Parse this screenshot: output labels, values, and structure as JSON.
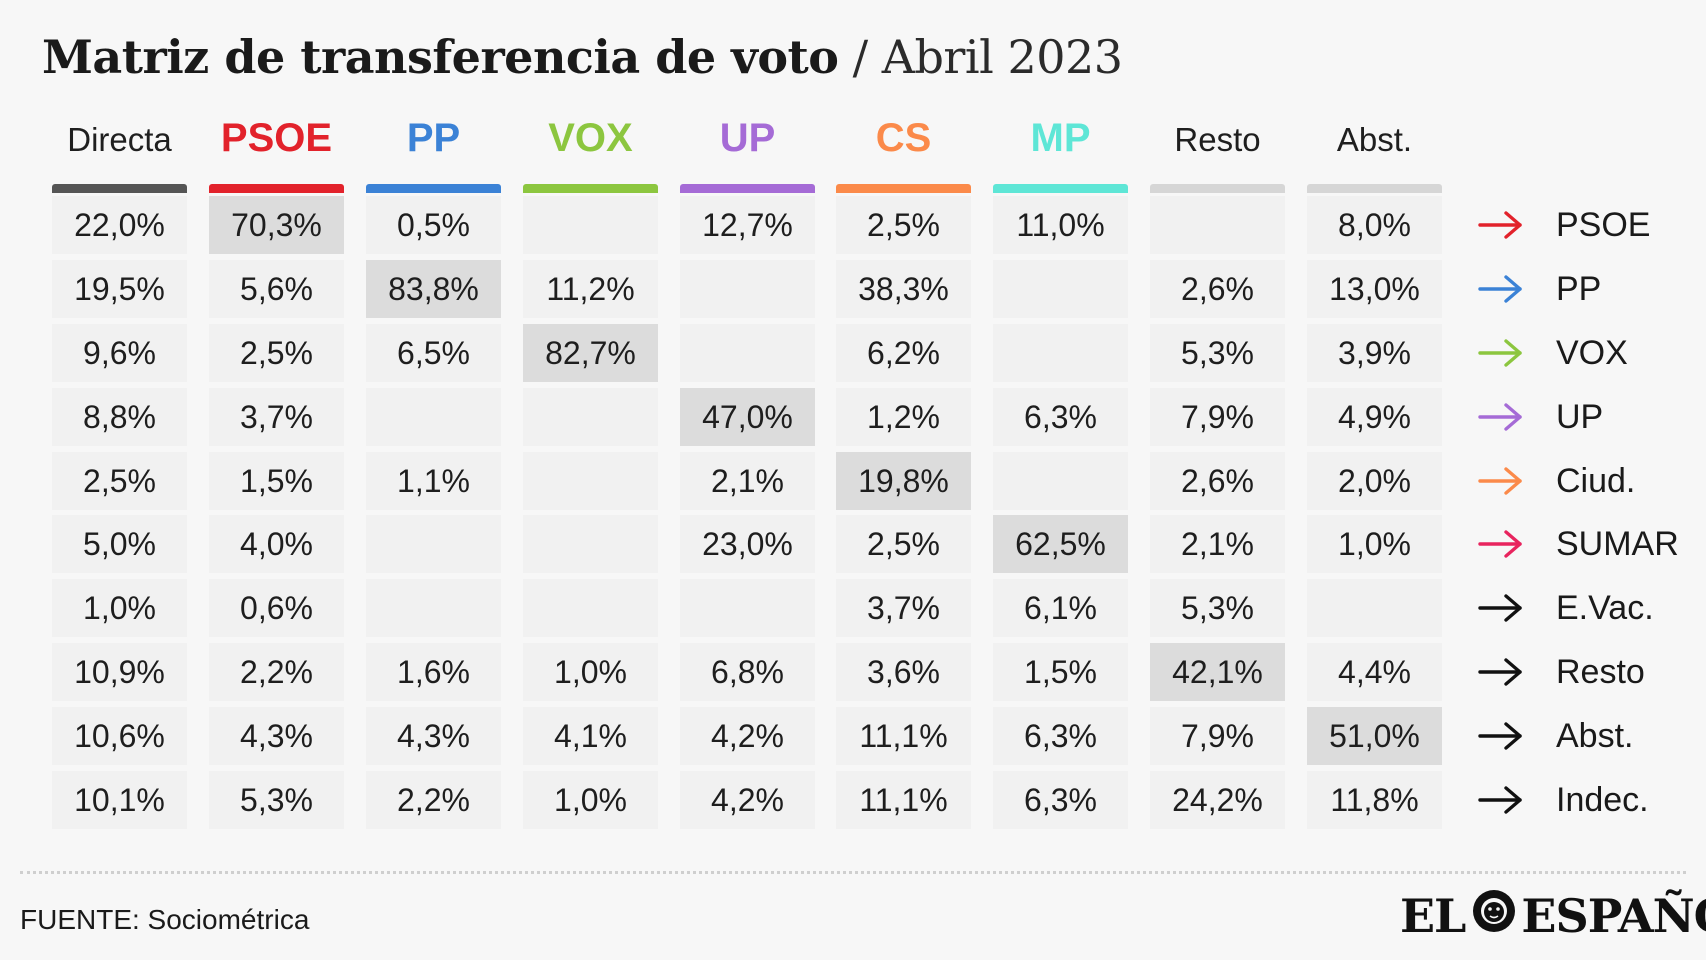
{
  "title": {
    "main": "Matriz de transferencia de voto",
    "separator": "/",
    "date": "Abril 2023"
  },
  "chart_data": {
    "type": "table",
    "columns": [
      {
        "label": "Directa",
        "color": "#555555",
        "emphasis": false
      },
      {
        "label": "PSOE",
        "color": "#e2222b",
        "emphasis": true
      },
      {
        "label": "PP",
        "color": "#3b82d6",
        "emphasis": true
      },
      {
        "label": "VOX",
        "color": "#8cc63f",
        "emphasis": true
      },
      {
        "label": "UP",
        "color": "#a56bd6",
        "emphasis": true
      },
      {
        "label": "CS",
        "color": "#fb8a4a",
        "emphasis": true
      },
      {
        "label": "MP",
        "color": "#5ee6d6",
        "emphasis": true
      },
      {
        "label": "Resto",
        "color": "#d6d6d6",
        "emphasis": false
      },
      {
        "label": "Abst.",
        "color": "#d6d6d6",
        "emphasis": false
      }
    ],
    "rows": [
      {
        "label": "PSOE",
        "arrow_color": "#e2222b",
        "values": [
          "22,0%",
          "70,3%",
          "0,5%",
          "",
          "12,7%",
          "2,5%",
          "11,0%",
          "",
          "8,0%"
        ],
        "highlight": 1
      },
      {
        "label": "PP",
        "arrow_color": "#3b82d6",
        "values": [
          "19,5%",
          "5,6%",
          "83,8%",
          "11,2%",
          "",
          "38,3%",
          "",
          "2,6%",
          "13,0%"
        ],
        "highlight": 2
      },
      {
        "label": "VOX",
        "arrow_color": "#8cc63f",
        "values": [
          "9,6%",
          "2,5%",
          "6,5%",
          "82,7%",
          "",
          "6,2%",
          "",
          "5,3%",
          "3,9%"
        ],
        "highlight": 3
      },
      {
        "label": "UP",
        "arrow_color": "#a56bd6",
        "values": [
          "8,8%",
          "3,7%",
          "",
          "",
          "47,0%",
          "1,2%",
          "6,3%",
          "7,9%",
          "4,9%"
        ],
        "highlight": 4
      },
      {
        "label": "Ciud.",
        "arrow_color": "#fb8a4a",
        "values": [
          "2,5%",
          "1,5%",
          "1,1%",
          "",
          "2,1%",
          "19,8%",
          "",
          "2,6%",
          "2,0%"
        ],
        "highlight": 5
      },
      {
        "label": "SUMAR",
        "arrow_color": "#e8245e",
        "values": [
          "5,0%",
          "4,0%",
          "",
          "",
          "23,0%",
          "2,5%",
          "62,5%",
          "2,1%",
          "1,0%"
        ],
        "highlight": 6
      },
      {
        "label": "E.Vac.",
        "arrow_color": "#111111",
        "values": [
          "1,0%",
          "0,6%",
          "",
          "",
          "",
          "3,7%",
          "6,1%",
          "5,3%",
          ""
        ],
        "highlight": -1
      },
      {
        "label": "Resto",
        "arrow_color": "#111111",
        "values": [
          "10,9%",
          "2,2%",
          "1,6%",
          "1,0%",
          "6,8%",
          "3,6%",
          "1,5%",
          "42,1%",
          "4,4%"
        ],
        "highlight": 7
      },
      {
        "label": "Abst.",
        "arrow_color": "#111111",
        "values": [
          "10,6%",
          "4,3%",
          "4,3%",
          "4,1%",
          "4,2%",
          "11,1%",
          "6,3%",
          "7,9%",
          "51,0%"
        ],
        "highlight": 8
      },
      {
        "label": "Indec.",
        "arrow_color": "#111111",
        "values": [
          "10,1%",
          "5,3%",
          "2,2%",
          "1,0%",
          "4,2%",
          "11,1%",
          "6,3%",
          "24,2%",
          "11,8%"
        ],
        "highlight": -1
      }
    ]
  },
  "footer": {
    "source": "FUENTE: Sociométrica",
    "logo_left": "EL",
    "logo_right": "ESPAÑOL"
  }
}
